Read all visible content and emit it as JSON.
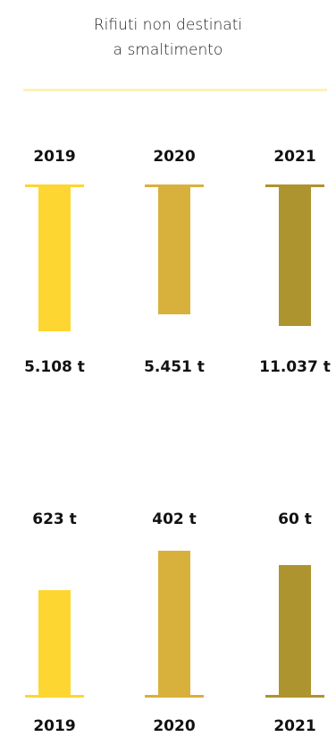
{
  "title_lines": [
    "Rifiuti non destinati",
    "a smaltimento"
  ],
  "colors": {
    "c2019": "#fdd632",
    "c2020": "#d8b13c",
    "c2021": "#ad942e",
    "divider": "#fdf1b6"
  },
  "chart_data": [
    {
      "type": "bar",
      "categories": [
        "2019",
        "2020",
        "2021"
      ],
      "values": [
        5108,
        5451,
        11037
      ],
      "value_labels": [
        "5.108 t",
        "5.451 t",
        "11.037 t"
      ],
      "orientation": "hanging-from-top"
    },
    {
      "type": "bar",
      "categories": [
        "2019",
        "2020",
        "2021"
      ],
      "values": [
        623,
        402,
        60
      ],
      "value_labels": [
        "623 t",
        "402 t",
        "60 t"
      ],
      "orientation": "standing-on-baseline"
    }
  ]
}
